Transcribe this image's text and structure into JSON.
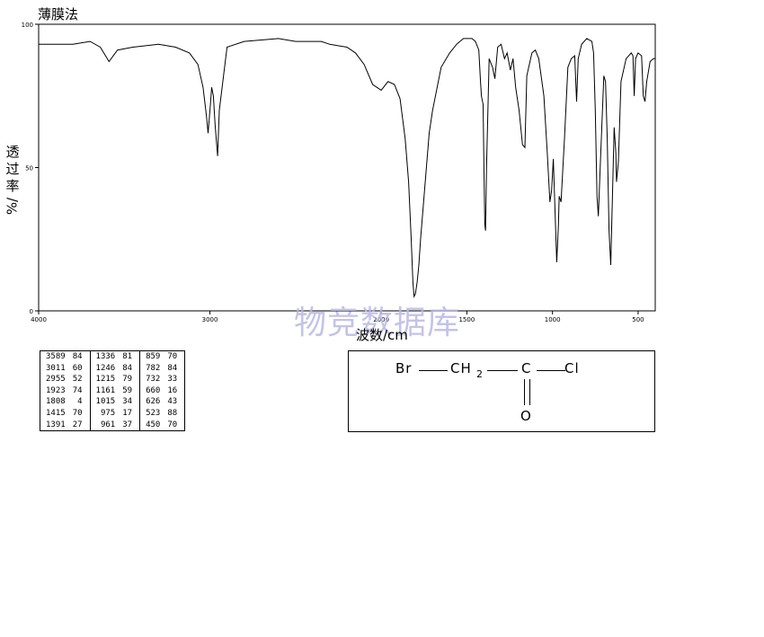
{
  "page": {
    "title": "薄膜法",
    "ylabel_chars": [
      "透",
      "过",
      "率"
    ],
    "ylabel_unit": "%/",
    "xlabel": "波数/cm",
    "watermark": "物竞数据库"
  },
  "chart_data": {
    "type": "line",
    "title": "薄膜法",
    "xlabel": "波数/cm",
    "ylabel": "透过率%/",
    "xlim": [
      4000,
      400
    ],
    "ylim": [
      0,
      100
    ],
    "x_ticks": [
      4000,
      3000,
      2000,
      1500,
      1000,
      500
    ],
    "y_ticks": [
      0,
      50,
      100
    ],
    "grid": false,
    "series": [
      {
        "x": [
          4000,
          3900,
          3800,
          3700,
          3640,
          3589,
          3540,
          3450,
          3300,
          3200,
          3120,
          3070,
          3040,
          3020,
          3011,
          3000,
          2990,
          2980,
          2970,
          2955,
          2945,
          2900,
          2800,
          2600,
          2500,
          2450,
          2350,
          2300,
          2200,
          2150,
          2100,
          2050,
          2000,
          1960,
          1923,
          1890,
          1860,
          1840,
          1825,
          1815,
          1808,
          1800,
          1790,
          1780,
          1770,
          1750,
          1720,
          1700,
          1650,
          1600,
          1560,
          1520,
          1470,
          1450,
          1430,
          1420,
          1415,
          1405,
          1400,
          1395,
          1391,
          1385,
          1370,
          1350,
          1336,
          1320,
          1300,
          1280,
          1265,
          1246,
          1230,
          1215,
          1195,
          1175,
          1161,
          1150,
          1120,
          1100,
          1080,
          1050,
          1030,
          1015,
          1005,
          995,
          985,
          975,
          965,
          961,
          950,
          930,
          910,
          890,
          870,
          859,
          850,
          830,
          800,
          770,
          760,
          750,
          740,
          732,
          720,
          700,
          690,
          680,
          670,
          660,
          650,
          640,
          630,
          626,
          615,
          600,
          570,
          540,
          530,
          523,
          515,
          500,
          480,
          470,
          460,
          450,
          430,
          410,
          400
        ],
        "values": [
          93,
          93,
          93,
          94,
          92,
          87,
          91,
          92,
          93,
          92,
          90,
          86,
          78,
          68,
          62,
          70,
          78,
          75,
          65,
          54,
          70,
          92,
          94,
          95,
          94,
          94,
          94,
          93,
          92,
          90,
          86,
          79,
          77,
          80,
          79,
          74,
          60,
          45,
          25,
          10,
          5,
          6,
          10,
          16,
          25,
          40,
          62,
          70,
          85,
          90,
          93,
          95,
          95,
          94,
          91,
          80,
          75,
          72,
          50,
          30,
          28,
          50,
          88,
          85,
          81,
          92,
          93,
          88,
          90,
          84,
          88,
          78,
          70,
          58,
          57,
          82,
          90,
          91,
          88,
          75,
          55,
          38,
          42,
          53,
          35,
          17,
          30,
          40,
          38,
          60,
          85,
          88,
          89,
          73,
          88,
          93,
          95,
          94,
          90,
          70,
          40,
          33,
          52,
          82,
          80,
          60,
          28,
          16,
          40,
          64,
          55,
          45,
          52,
          80,
          88,
          90,
          89,
          75,
          88,
          90,
          89,
          75,
          73,
          80,
          87,
          88,
          88
        ]
      }
    ]
  },
  "peak_table": {
    "columns": [
      [
        [
          "3589",
          "84"
        ],
        [
          "3011",
          "60"
        ],
        [
          "2955",
          "52"
        ],
        [
          "1923",
          "74"
        ],
        [
          "1808",
          "4"
        ],
        [
          "1415",
          "70"
        ],
        [
          "1391",
          "27"
        ]
      ],
      [
        [
          "1336",
          "81"
        ],
        [
          "1246",
          "84"
        ],
        [
          "1215",
          "79"
        ],
        [
          "1161",
          "59"
        ],
        [
          "1015",
          "34"
        ],
        [
          "975",
          "17"
        ],
        [
          "961",
          "37"
        ]
      ],
      [
        [
          "859",
          "70"
        ],
        [
          "782",
          "84"
        ],
        [
          "732",
          "33"
        ],
        [
          "660",
          "16"
        ],
        [
          "626",
          "43"
        ],
        [
          "523",
          "88"
        ],
        [
          "450",
          "70"
        ]
      ]
    ]
  },
  "structure": {
    "br": "Br",
    "ch2": "CH",
    "sub2": "2",
    "c": "C",
    "cl": "Cl",
    "o": "O"
  }
}
